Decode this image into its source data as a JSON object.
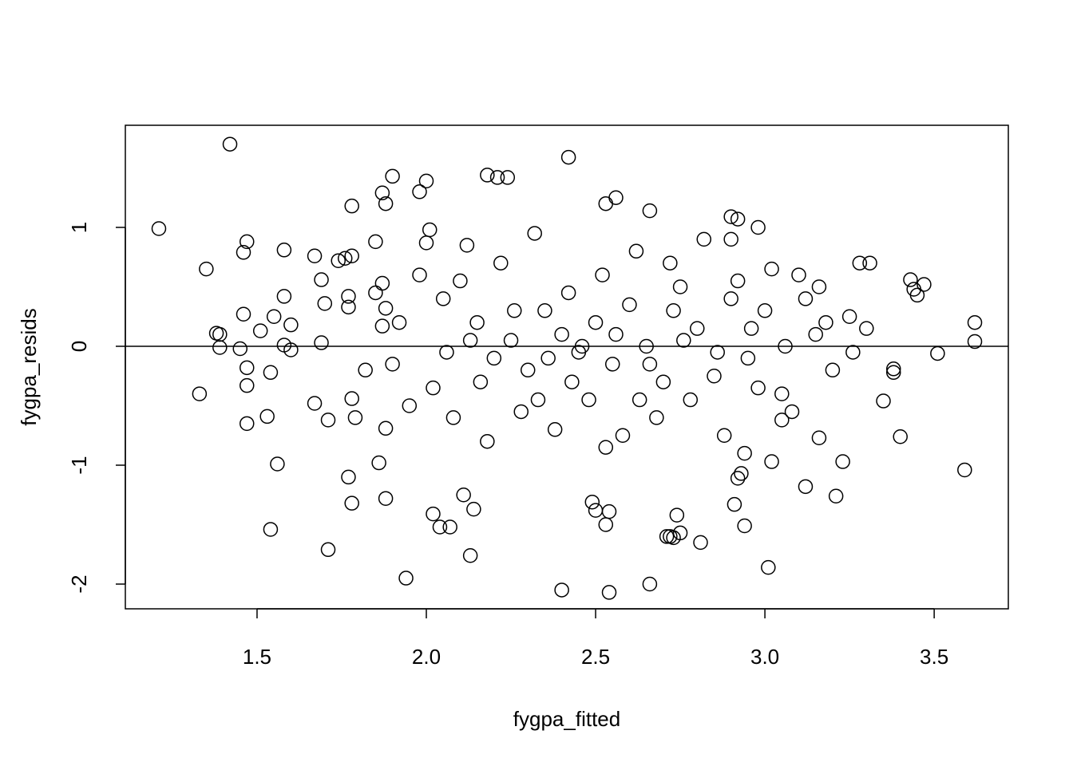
{
  "chart_data": {
    "type": "scatter",
    "x_label": "fygpa_fitted",
    "y_label": "fygpa_resids",
    "xlim": [
      1.111,
      3.719
    ],
    "ylim": [
      -2.208,
      1.859
    ],
    "xticks": [
      1.5,
      {
        "value": 2,
        "label": "2.0"
      },
      2.5,
      {
        "value": 3,
        "label": "3.0"
      },
      3.5
    ],
    "yticks": [
      -2,
      -1,
      0,
      1
    ],
    "hline": 0,
    "color": "#000000",
    "grid": false,
    "x": [
      1.21,
      1.42,
      1.35,
      1.33,
      1.38,
      1.39,
      1.39,
      1.46,
      1.47,
      1.46,
      1.45,
      1.47,
      1.47,
      1.47,
      1.54,
      1.56,
      1.53,
      1.54,
      1.51,
      1.55,
      1.58,
      1.58,
      1.58,
      1.6,
      1.6,
      1.71,
      1.67,
      1.69,
      1.7,
      1.67,
      1.71,
      1.69,
      1.74,
      1.76,
      1.78,
      1.77,
      1.78,
      1.78,
      1.79,
      1.77,
      1.77,
      1.78,
      1.87,
      1.88,
      1.85,
      1.87,
      1.88,
      1.87,
      1.9,
      1.94,
      1.88,
      1.86,
      1.88,
      2.0,
      1.98,
      2.01,
      2.0,
      2.02,
      2.04,
      2.07,
      2.13,
      2.11,
      2.14,
      2.21,
      2.18,
      2.24,
      2.42,
      2.4,
      2.54,
      2.66,
      2.5,
      2.53,
      2.54,
      2.49,
      2.53,
      2.56,
      2.66,
      2.71,
      2.72,
      2.73,
      2.74,
      2.75,
      2.81,
      2.91,
      2.94,
      3.01,
      3.02,
      3.05,
      3.12,
      3.16,
      3.23,
      3.21,
      3.28,
      3.31,
      3.35,
      3.4,
      3.38,
      3.38,
      3.43,
      3.47,
      3.44,
      3.45,
      3.51,
      3.59,
      3.62,
      3.62,
      2.94,
      2.93,
      2.92,
      2.9,
      2.92,
      2.9,
      2.98,
      2.05,
      2.1,
      2.15,
      2.2,
      2.25,
      2.3,
      2.35,
      2.4,
      2.45,
      2.5,
      2.55,
      2.6,
      2.65,
      2.7,
      2.75,
      2.8,
      2.85,
      2.9,
      2.95,
      3.0,
      3.05,
      3.1,
      3.15,
      3.2,
      3.25,
      2.02,
      2.08,
      2.12,
      2.18,
      2.22,
      2.28,
      2.32,
      2.38,
      2.42,
      2.48,
      2.52,
      2.58,
      2.62,
      2.68,
      2.72,
      2.78,
      2.82,
      2.88,
      2.92,
      2.98,
      3.02,
      3.08,
      3.12,
      3.18,
      1.92,
      1.95,
      1.9,
      1.85,
      1.82,
      1.98,
      2.06,
      2.16,
      2.26,
      2.36,
      2.46,
      2.56,
      2.66,
      2.76,
      2.86,
      2.96,
      3.06,
      3.16,
      3.26,
      3.3,
      2.33,
      2.53,
      2.13,
      2.73,
      2.63,
      2.43
    ],
    "values": [
      0.99,
      1.7,
      0.65,
      -0.4,
      0.11,
      0.1,
      -0.01,
      0.79,
      0.88,
      0.27,
      -0.02,
      -0.18,
      -0.33,
      -0.65,
      -1.54,
      -0.99,
      -0.59,
      -0.22,
      0.13,
      0.25,
      0.81,
      0.42,
      0.01,
      -0.03,
      0.18,
      -1.71,
      0.76,
      0.56,
      0.36,
      -0.48,
      -0.62,
      0.03,
      0.72,
      0.74,
      1.18,
      -1.1,
      -1.32,
      -0.44,
      -0.6,
      0.33,
      0.42,
      0.76,
      1.29,
      1.2,
      0.88,
      0.53,
      0.32,
      0.17,
      1.43,
      -1.95,
      -1.28,
      -0.98,
      -0.69,
      1.39,
      1.3,
      0.98,
      0.87,
      -1.41,
      -1.52,
      -1.52,
      -1.76,
      -1.25,
      -1.37,
      1.42,
      1.44,
      1.42,
      1.59,
      -2.05,
      -2.07,
      -2.0,
      -1.38,
      -1.5,
      -1.39,
      -1.31,
      1.2,
      1.25,
      1.14,
      -1.6,
      -1.6,
      -1.61,
      -1.42,
      -1.57,
      -1.65,
      -1.33,
      -1.51,
      -1.86,
      -0.97,
      -0.62,
      -1.18,
      -0.77,
      -0.97,
      -1.26,
      0.7,
      0.7,
      -0.46,
      -0.76,
      -0.22,
      -0.19,
      0.56,
      0.52,
      0.48,
      0.43,
      -0.06,
      -1.04,
      0.2,
      0.04,
      -0.9,
      -1.07,
      -1.11,
      1.09,
      1.07,
      0.9,
      1.0,
      0.4,
      0.55,
      0.2,
      -0.1,
      0.05,
      -0.2,
      0.3,
      0.1,
      -0.05,
      0.2,
      -0.15,
      0.35,
      0.0,
      -0.3,
      0.5,
      0.15,
      -0.25,
      0.4,
      -0.1,
      0.3,
      -0.4,
      0.6,
      0.1,
      -0.2,
      0.25,
      -0.35,
      -0.6,
      0.85,
      -0.8,
      0.7,
      -0.55,
      0.95,
      -0.7,
      0.45,
      -0.45,
      0.6,
      -0.75,
      0.8,
      -0.6,
      0.7,
      -0.45,
      0.9,
      -0.75,
      0.55,
      -0.35,
      0.65,
      -0.55,
      0.4,
      0.2,
      0.2,
      -0.5,
      -0.15,
      0.45,
      -0.2,
      0.6,
      -0.05,
      -0.3,
      0.3,
      -0.1,
      0.0,
      0.1,
      -0.15,
      0.05,
      -0.05,
      0.15,
      0.0,
      0.5,
      -0.05,
      0.15,
      -0.45,
      -0.85,
      0.05,
      0.3,
      -0.45,
      -0.3
    ]
  }
}
